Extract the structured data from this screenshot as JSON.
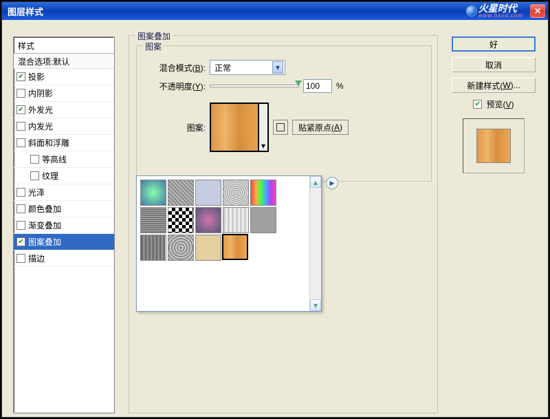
{
  "window": {
    "title": "图层样式"
  },
  "watermark": {
    "text": "火星时代",
    "sub": "www.hxsd.com"
  },
  "styles_panel": {
    "header": "样式",
    "blend_options": "混合选项:默认",
    "items": [
      {
        "label": "投影",
        "checked": true,
        "selected": false,
        "indent": false
      },
      {
        "label": "内阴影",
        "checked": false,
        "selected": false,
        "indent": false
      },
      {
        "label": "外发光",
        "checked": true,
        "selected": false,
        "indent": false
      },
      {
        "label": "内发光",
        "checked": false,
        "selected": false,
        "indent": false
      },
      {
        "label": "斜面和浮雕",
        "checked": false,
        "selected": false,
        "indent": false
      },
      {
        "label": "等高线",
        "checked": false,
        "selected": false,
        "indent": true
      },
      {
        "label": "纹理",
        "checked": false,
        "selected": false,
        "indent": true
      },
      {
        "label": "光泽",
        "checked": false,
        "selected": false,
        "indent": false
      },
      {
        "label": "颜色叠加",
        "checked": false,
        "selected": false,
        "indent": false
      },
      {
        "label": "渐变叠加",
        "checked": false,
        "selected": false,
        "indent": false
      },
      {
        "label": "图案叠加",
        "checked": true,
        "selected": true,
        "indent": false
      },
      {
        "label": "描边",
        "checked": false,
        "selected": false,
        "indent": false
      }
    ]
  },
  "pattern_overlay": {
    "group_title": "图案叠加",
    "subgroup_title": "图案",
    "blend_label_pre": "混合模式(",
    "blend_label_key": "B",
    "blend_label_post": "):",
    "blend_value": "正常",
    "opacity_label_pre": "不透明度(",
    "opacity_label_key": "Y",
    "opacity_label_post": "):",
    "opacity_value": "100",
    "opacity_unit": "%",
    "pattern_label": "图案:",
    "snap_label_pre": "贴紧原点(",
    "snap_label_key": "A",
    "snap_label_post": ")"
  },
  "patterns": {
    "thumbs": [
      {
        "bg": "radial-gradient(#8fa,#47a)",
        "sel": false
      },
      {
        "bg": "repeating-linear-gradient(45deg,#888 0,#888 2px,#bbb 2px,#bbb 4px)",
        "sel": false
      },
      {
        "bg": "repeating-linear-gradient(90deg,#cfd6e6 0,#cfd6e6 1px,#b9c4dc 1px,#b9c4dc 2px)",
        "sel": false
      },
      {
        "bg": "repeating-radial-gradient(#999 0,#999 1px,#ddd 1px,#ddd 3px)",
        "sel": false
      },
      {
        "bg": "linear-gradient(90deg,#f44,#fa4,#4f4,#4af,#a4f,#f4a)",
        "sel": false
      },
      {
        "bg": "repeating-linear-gradient(0deg,#777 0,#777 2px,#aaa 2px,#aaa 3px)",
        "sel": false
      },
      {
        "bg": "repeating-conic-gradient(#000 0 25%,#fff 0 50%)",
        "sel": false,
        "bgsize": "10px 10px"
      },
      {
        "bg": "radial-gradient(#c7a,#557)",
        "sel": false
      },
      {
        "bg": "repeating-linear-gradient(90deg,#ccc 0,#ccc 3px,#eee 3px,#eee 6px)",
        "sel": false
      },
      {
        "bg": "url()",
        "sel": false,
        "solid": "#a0a0a0"
      },
      {
        "bg": "repeating-linear-gradient(90deg,#000 0,#000 1px,transparent 1px,transparent 2px)",
        "sel": false
      },
      {
        "bg": "repeating-radial-gradient(#888 0,#888 2px,#ccc 2px,#ccc 4px)",
        "sel": false
      },
      {
        "bg": "#e4cfa0",
        "sel": false,
        "solid": "#e4cfa0"
      },
      {
        "bg": "linear-gradient(90deg,#e09a4a,#efb56a 30%,#d98f3c 60%,#eaa856)",
        "sel": true
      }
    ]
  },
  "right": {
    "ok": "好",
    "cancel": "取消",
    "new_style_pre": "新建样式(",
    "new_style_key": "W",
    "new_style_post": ")...",
    "preview_pre": "预览(",
    "preview_key": "V",
    "preview_post": ")"
  }
}
